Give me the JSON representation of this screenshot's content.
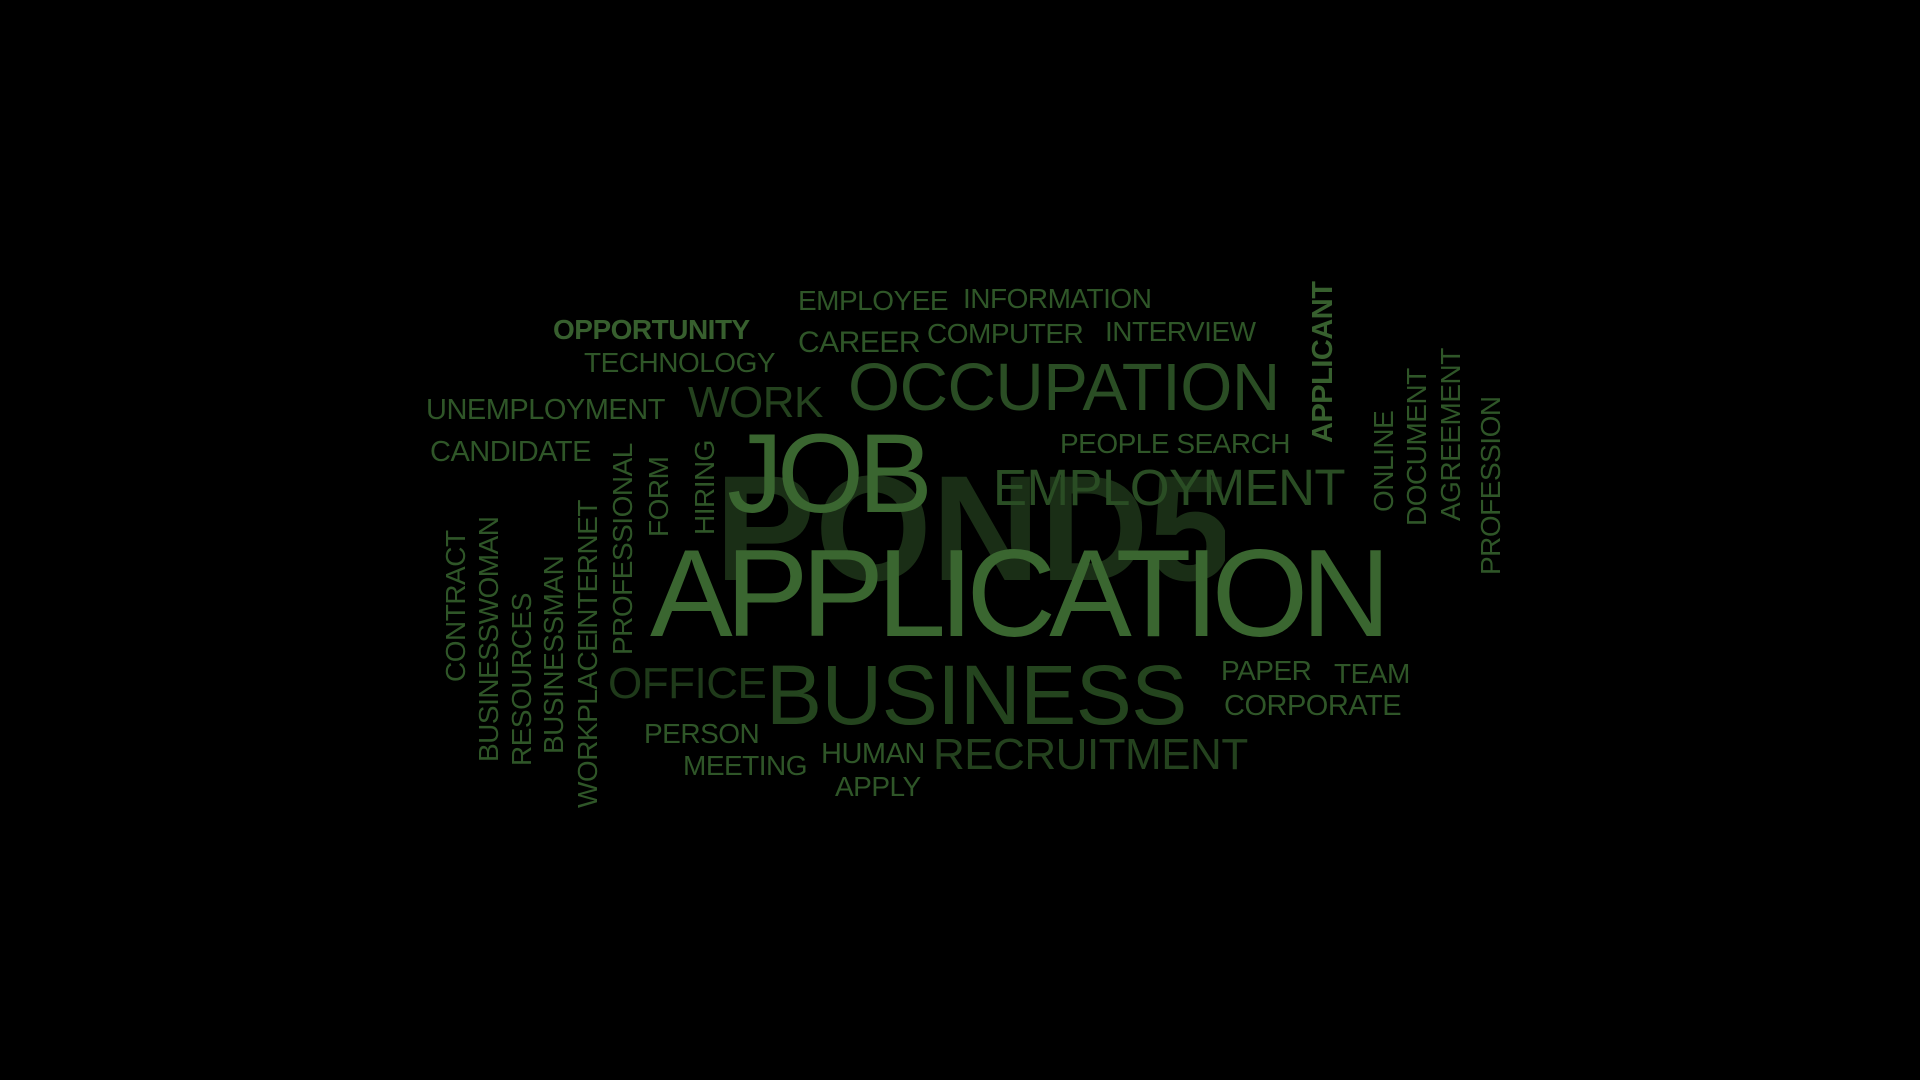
{
  "colors": {
    "background": "#000000",
    "green_bright": "#3d6a32",
    "green_mid": "#2f5628",
    "green_dim": "#26461f",
    "green_dark": "#1f3a1a",
    "watermark": "#1a2e16"
  },
  "watermark": {
    "label": "POND5",
    "icon": "pond5-logo-watermark"
  },
  "words": {
    "job": "JOB",
    "application": "APPLICATION",
    "business": "BUSINESS",
    "occupation": "OCCUPATION",
    "employment": "EMPLOYMENT",
    "recruitment": "RECRUITMENT",
    "office": "OFFICE",
    "work": "WORK",
    "employee": "EMPLOYEE",
    "information": "INFORMATION",
    "opportunity": "OPPORTUNITY",
    "career": "CAREER",
    "computer": "COMPUTER",
    "interview": "INTERVIEW",
    "technology": "TECHNOLOGY",
    "unemployment": "UNEMPLOYMENT",
    "candidate": "CANDIDATE",
    "people_search": "PEOPLE SEARCH",
    "applicant": "APPLICANT",
    "online": "ONLINE",
    "document": "DOCUMENT",
    "agreement": "AGREEMENT",
    "profession": "PROFESSION",
    "paper": "PAPER",
    "team": "TEAM",
    "corporate": "CORPORATE",
    "person": "PERSON",
    "meeting": "MEETING",
    "human": "HUMAN",
    "apply": "APPLY",
    "contract": "CONTRACT",
    "businesswoman": "BUSINESSWOMAN",
    "resources": "RESOURCES",
    "businessman": "BUSINESSMAN",
    "workplace": "WORKPLACE",
    "internet": "INTERNET",
    "professional": "PROFESSIONAL",
    "form": "FORM",
    "hiring": "HIRING"
  }
}
